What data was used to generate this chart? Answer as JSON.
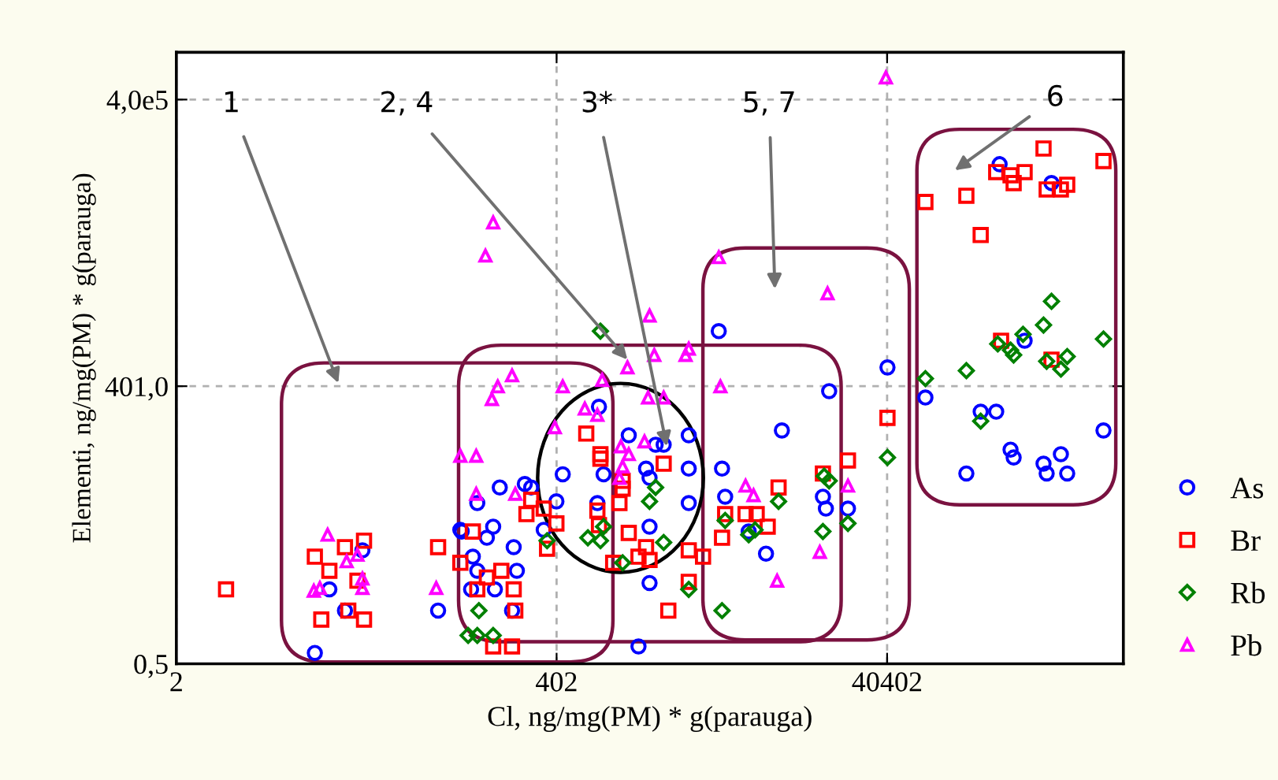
{
  "chart_data": {
    "type": "scatter",
    "xlabel": "Cl, ng/mg(PM) * g(parauga)",
    "ylabel": "Elementi, ng/mg(PM) * g(parauga)",
    "log": "xy",
    "grid": true,
    "legend": "right",
    "xlim": [
      2,
      1090000
    ],
    "ylim": [
      0.5,
      1250000
    ],
    "xticks": [
      2,
      402,
      40402
    ],
    "yticks": [
      {
        "value": 0.5,
        "label": "0,5"
      },
      {
        "value": 401,
        "label": "401,0"
      },
      {
        "value": 400000,
        "label": "4,0e5"
      }
    ],
    "annotations": [
      "1",
      {
        "text": "2, 4",
        "x": 1080,
        "y": 760
      },
      {
        "text": "3*",
        "x": 1870,
        "y": 94
      },
      "5, 7",
      "6"
    ],
    "series": [
      {
        "name": "As",
        "color": "#0000ff",
        "marker": "circle",
        "x": [
          16.9,
          26.8,
          21,
          13.8,
          77,
          105,
          125,
          133,
          170,
          166,
          152,
          182,
          133,
          221,
          122,
          216,
          258,
          282,
          107,
          231,
          401,
          336,
          438,
          774,
          710,
          726,
          1100,
          1600,
          1790,
          1400,
          1470,
          2540,
          2540,
          2540,
          1470,
          1470,
          1260,
          4040,
          4220,
          5860,
          3860,
          18000,
          40600,
          9310,
          16500,
          17200,
          23400,
          7460,
          194000,
          400000,
          275000,
          68900,
          149000,
          185000,
          226000,
          236000,
          122000,
          358000,
          374000,
          456000,
          498000,
          826000
        ],
        "values": [
          3.0,
          7.7,
          1.8,
          0.65,
          1.8,
          12.6,
          6.6,
          4.7,
          3.0,
          13.6,
          10.4,
          35,
          24,
          8.3,
          3.0,
          1.8,
          38,
          35,
          12.1,
          4.7,
          25,
          12.6,
          48,
          48,
          24,
          244,
          123,
          98,
          98,
          55,
          44,
          123,
          55,
          24,
          13.6,
          3.5,
          0.76,
          55,
          28,
          12.1,
          1510,
          356,
          630,
          138,
          28,
          21,
          21,
          7.1,
          84300,
          53500,
          1200,
          305,
          217,
          217,
          87,
          72,
          49,
          62,
          49,
          78,
          49,
          138
        ]
      },
      {
        "name": "Br",
        "color": "#ff0000",
        "marker": "square",
        "x": [
          4.0,
          13.8,
          16.9,
          21,
          27.4,
          25,
          22,
          27.4,
          15.1,
          77,
          105,
          125,
          152,
          186,
          133,
          221,
          226,
          166,
          216,
          608,
          741,
          741,
          1010,
          1010,
          966,
          710,
          726,
          401,
          352,
          336,
          282,
          264,
          1790,
          1100,
          1400,
          1470,
          1260,
          885,
          1910,
          2540,
          3100,
          2540,
          4040,
          4220,
          40600,
          23400,
          16500,
          8890,
          5610,
          6550,
          7640,
          68900,
          122000,
          149000,
          185000,
          226000,
          236000,
          275000,
          358000,
          374000,
          456000,
          498000,
          826000,
          198000,
          400000
        ],
        "values": [
          3.0,
          6.6,
          4.7,
          8.3,
          9.7,
          3.7,
          1.8,
          1.45,
          1.45,
          8.3,
          5.7,
          12.1,
          4.0,
          4.7,
          3.0,
          3.0,
          1.8,
          0.76,
          0.76,
          128,
          78,
          70,
          41,
          34,
          24,
          20,
          14.1,
          14.7,
          8.0,
          21,
          26,
          18.4,
          62,
          11.7,
          8.3,
          6.1,
          6.6,
          5.7,
          1.8,
          7.7,
          6.6,
          3.6,
          10.4,
          18.4,
          187,
          67,
          49,
          35,
          18.4,
          18.4,
          13.6,
          33900,
          39400,
          15300,
          69700,
          64600,
          53500,
          69700,
          123000,
          45900,
          45900,
          51400,
          91000,
          1200,
          760
        ]
      },
      {
        "name": "Rb",
        "color": "#008000",
        "marker": "diamond",
        "x": [
          117,
          133,
          166,
          136,
          622,
          741,
          774,
          352,
          1010,
          1600,
          1470,
          1790,
          2540,
          4040,
          4220,
          5860,
          741,
          40600,
          16800,
          18000,
          8890,
          6400,
          16500,
          23400,
          68900,
          122000,
          149000,
          189000,
          226000,
          269000,
          358000,
          400000,
          374000,
          456000,
          498000,
          826000,
          236000
        ],
        "values": [
          0.99,
          0.99,
          0.99,
          1.8,
          10.4,
          9.7,
          13.6,
          9.7,
          5.7,
          35,
          25,
          9.3,
          3.0,
          1.8,
          15.8,
          11.2,
          1510,
          72,
          46,
          41,
          25,
          12.6,
          12.1,
          14.7,
          482,
          583,
          173,
          1110,
          955,
          1400,
          1750,
          3100,
          730,
          605,
          820,
          1250,
          850
        ]
      },
      {
        "name": "Pb",
        "color": "#ff00ff",
        "marker": "triangle",
        "x": [
          16.5,
          21.5,
          25,
          26.8,
          26.8,
          13.6,
          14.8,
          75,
          105,
          131,
          131,
          226,
          163,
          177,
          216,
          438,
          759,
          392,
          596,
          710,
          1080,
          986,
          1100,
          1010,
          966,
          1370,
          1440,
          1790,
          2430,
          1570,
          3950,
          5610,
          3860,
          17600,
          6270,
          23400,
          15800,
          8710,
          39700,
          166,
          149,
          1470,
          2540
        ],
        "values": [
          11.2,
          5.9,
          6.9,
          3.9,
          3.1,
          2.9,
          3.1,
          3.1,
          75,
          75,
          30,
          30,
          294,
          399,
          520,
          399,
          465,
          149,
          234,
          201,
          630,
          94,
          78,
          58,
          44,
          106,
          305,
          305,
          850,
          850,
          399,
          36.5,
          8970,
          3750,
          29,
          36.5,
          7.4,
          3.7,
          680000,
          20700,
          9310,
          2200,
          990
        ]
      }
    ]
  }
}
